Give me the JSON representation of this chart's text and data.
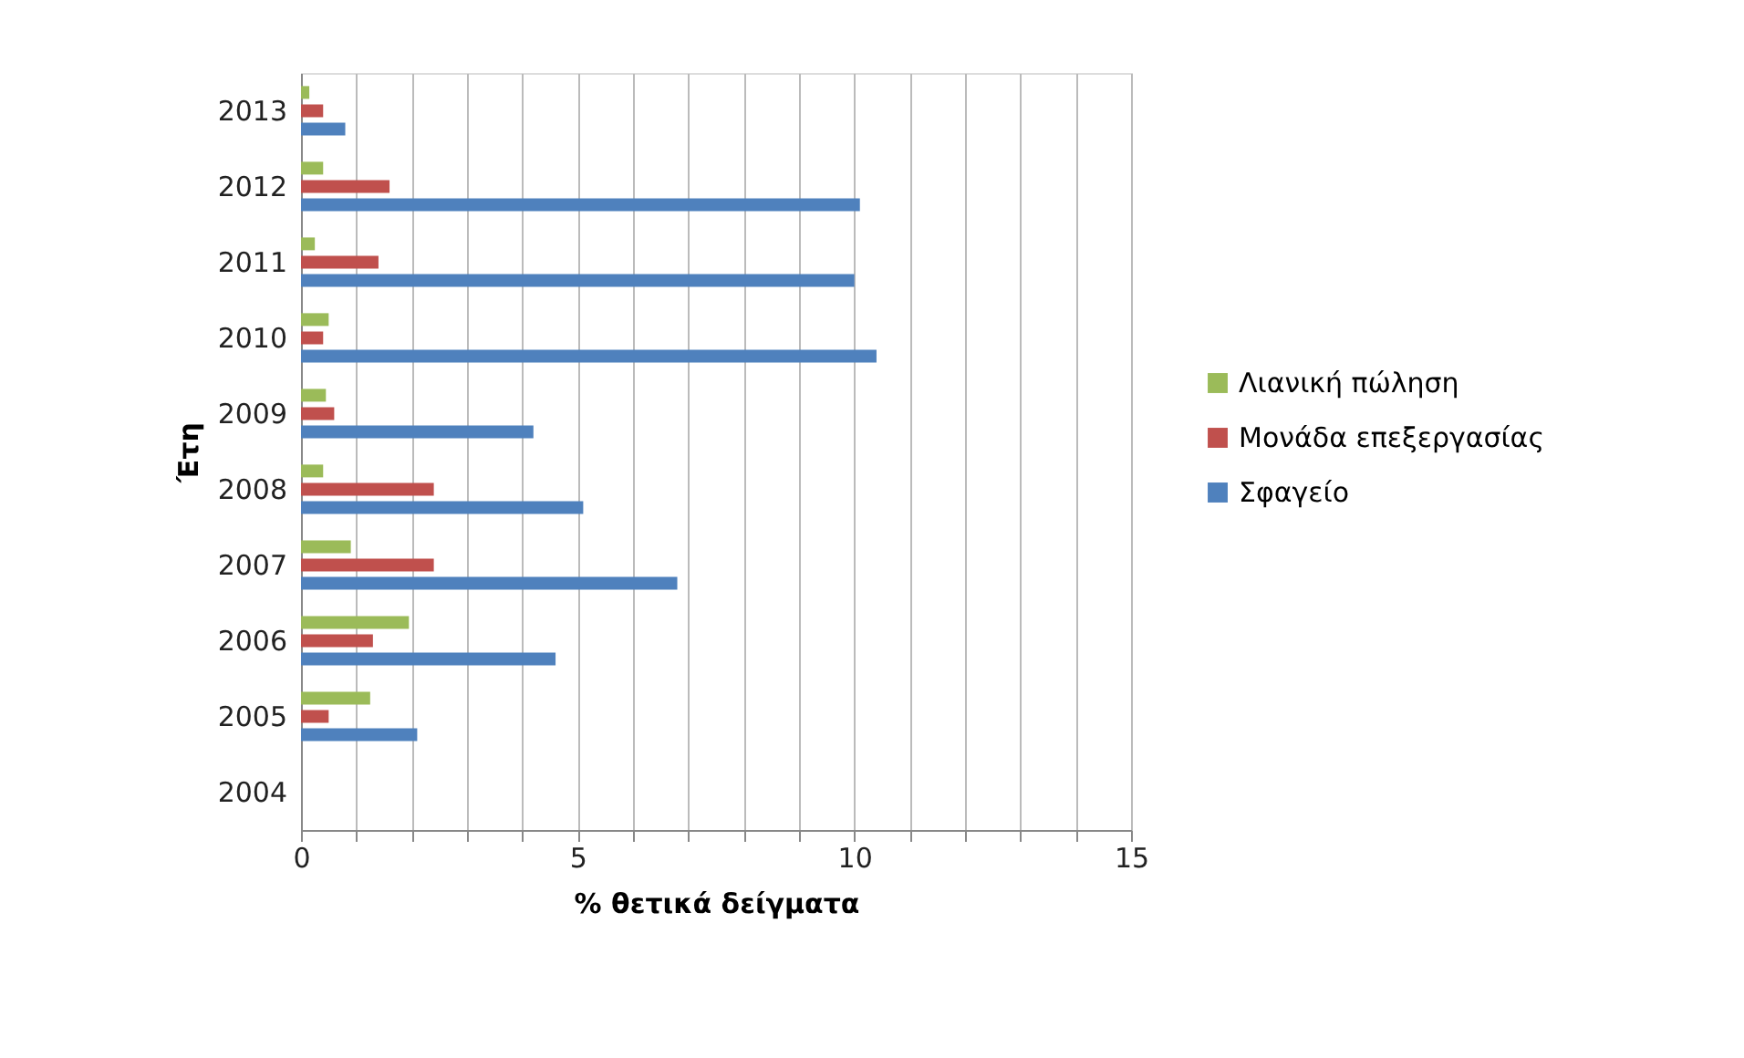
{
  "chart_data": {
    "type": "bar",
    "orientation": "horizontal",
    "xlabel": "% θετικά δείγματα",
    "ylabel": "Έτη",
    "categories": [
      "2013",
      "2012",
      "2011",
      "2010",
      "2009",
      "2008",
      "2007",
      "2006",
      "2005",
      "2004"
    ],
    "series": [
      {
        "name": "Λιανική πώληση",
        "color": "#9bbb59",
        "values": [
          0.15,
          0.4,
          0.25,
          0.5,
          0.45,
          0.4,
          0.9,
          1.95,
          1.25,
          null
        ]
      },
      {
        "name": "Μονάδα επεξεργασίας",
        "color": "#c0504d",
        "values": [
          0.4,
          1.6,
          1.4,
          0.4,
          0.6,
          2.4,
          2.4,
          1.3,
          0.5,
          null
        ]
      },
      {
        "name": "Σφαγείο",
        "color": "#4f81bd",
        "values": [
          0.8,
          10.1,
          10.0,
          10.4,
          4.2,
          5.1,
          6.8,
          4.6,
          2.1,
          null
        ]
      }
    ],
    "xlim": [
      0,
      15
    ],
    "xticks": [
      0,
      {
        "value": 1,
        "label": null
      },
      {
        "value": 2,
        "label": null
      },
      {
        "value": 3,
        "label": null
      },
      {
        "value": 4,
        "label": null
      },
      5,
      {
        "value": 6,
        "label": null
      },
      {
        "value": 7,
        "label": null
      },
      {
        "value": 8,
        "label": null
      },
      {
        "value": 9,
        "label": null
      },
      10,
      {
        "value": 11,
        "label": null
      },
      {
        "value": 12,
        "label": null
      },
      {
        "value": 13,
        "label": null
      },
      {
        "value": 14,
        "label": null
      },
      15
    ],
    "grid": "x",
    "legend": "right"
  }
}
